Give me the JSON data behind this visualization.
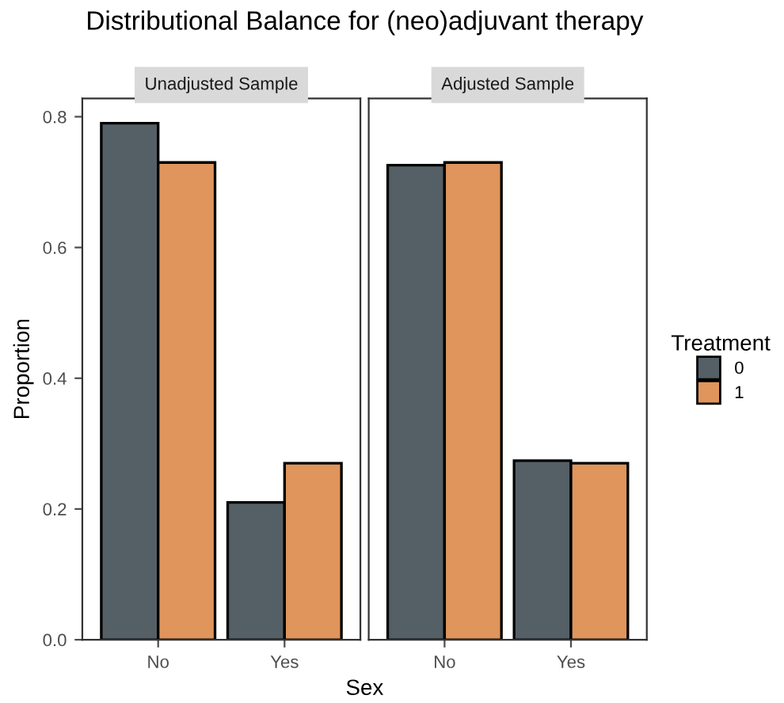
{
  "chart_data": [
    {
      "type": "bar",
      "title": "Distributional Balance for (neo)adjuvant therapy",
      "subtitle": "Unadjusted Sample",
      "xlabel": "Sex",
      "ylabel": "Proportion",
      "categories": [
        "No",
        "Yes"
      ],
      "series": [
        {
          "color": "#546066",
          "values": [
            0.79,
            0.21
          ]
        },
        {
          "color": "#df955c",
          "values": [
            0.73,
            0.27
          ]
        }
      ],
      "ylim": [
        0,
        0.828
      ],
      "yticks": [
        {
          "value": 0,
          "label": "0.0"
        },
        0.2,
        0.4,
        0.6,
        0.8
      ],
      "grid": false,
      "legend": false
    },
    {
      "type": "bar",
      "subtitle": "Adjusted Sample",
      "legend_title": "Treatment",
      "categories": [
        "No",
        "Yes"
      ],
      "series": [
        {
          "name": "0",
          "color": "#546066",
          "values": [
            0.726,
            0.274
          ]
        },
        {
          "name": "1",
          "color": "#df955c",
          "values": [
            0.73,
            0.27
          ]
        }
      ],
      "ylim": [
        0,
        0.828
      ],
      "tick_labels": "x",
      "grid": false,
      "legend": "right"
    }
  ]
}
